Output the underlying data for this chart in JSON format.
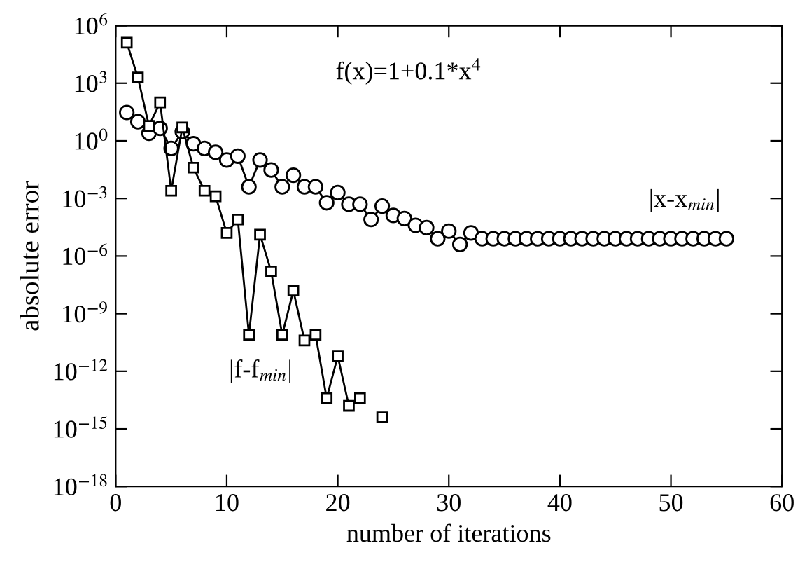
{
  "chart_data": {
    "type": "line",
    "xlabel": "number of iterations",
    "ylabel": "absolute error",
    "log": "y",
    "xlim": [
      0,
      60
    ],
    "xticks": [
      0,
      10,
      20,
      30,
      40,
      50,
      60
    ],
    "ylim": [
      1e-18,
      1000000.0
    ],
    "yticks": [
      {
        "value": 1e-18,
        "label": "10$^{−18}$"
      },
      {
        "value": 1e-15,
        "label": "10$^{−15}$"
      },
      {
        "value": 1e-12,
        "label": "10$^{−12}$"
      },
      {
        "value": 1e-09,
        "label": "10$^{−9}$"
      },
      {
        "value": 1e-06,
        "label": "10$^{−6}$"
      },
      {
        "value": 0.001,
        "label": "10$^{−3}$"
      },
      {
        "value": 1,
        "label": "10$^{0}$"
      },
      {
        "value": 1000.0,
        "label": "10$^{3}$"
      },
      {
        "value": 1000000.0,
        "label": "10$^{6}$"
      }
    ],
    "grid": false,
    "legend": false,
    "line_style": "solid",
    "series": [
      {
        "color": "#000000",
        "marker": "circle",
        "x": [
          1,
          2,
          3,
          4,
          5,
          6,
          7,
          8,
          9,
          10,
          11,
          12,
          13,
          14,
          15,
          16,
          17,
          18,
          19,
          20,
          21,
          22,
          23,
          24,
          25,
          26,
          27,
          28,
          29,
          30,
          31,
          32,
          33,
          34,
          35,
          36,
          37,
          38,
          39,
          40,
          41,
          42,
          43,
          44,
          45,
          46,
          47,
          48,
          49,
          50,
          51,
          52,
          53,
          54,
          55
        ],
        "values": [
          30,
          10,
          2.5,
          4.5,
          0.4,
          3,
          0.7,
          0.4,
          0.25,
          0.1,
          0.16,
          0.004,
          0.1,
          0.03,
          0.004,
          0.016,
          0.004,
          0.004,
          0.0006,
          0.002,
          0.0005,
          0.0005,
          8e-05,
          0.0004,
          0.00013,
          9e-05,
          4e-05,
          3e-05,
          8e-06,
          2e-05,
          4e-06,
          1.6e-05,
          8e-06,
          8e-06,
          8e-06,
          8e-06,
          8e-06,
          8e-06,
          8e-06,
          8e-06,
          8e-06,
          8e-06,
          8e-06,
          8e-06,
          8e-06,
          8e-06,
          8e-06,
          8e-06,
          8e-06,
          8e-06,
          8e-06,
          8e-06,
          8e-06,
          8e-06,
          8e-06
        ]
      },
      {
        "color": "#000000",
        "marker": "square",
        "x": [
          1,
          2,
          3,
          4,
          5,
          6,
          7,
          8,
          9,
          10,
          11,
          12,
          13,
          14,
          15,
          16,
          17,
          18,
          19,
          20,
          21,
          22,
          23,
          24
        ],
        "values": [
          130000.0,
          2000.0,
          6,
          100,
          0.0025,
          5,
          0.04,
          0.0025,
          0.0013,
          1.6e-05,
          8e-05,
          8e-11,
          1.3e-05,
          1.6e-07,
          8e-11,
          1.6e-08,
          4e-11,
          8e-11,
          4e-14,
          6e-12,
          1.6e-14,
          4e-14,
          null,
          4e-15
        ]
      }
    ],
    "annotations": [
      "f(x)=1+0.1*x$^{4}$",
      "|x-x$_{min}$|",
      "|f-f$_{min}$|"
    ]
  }
}
